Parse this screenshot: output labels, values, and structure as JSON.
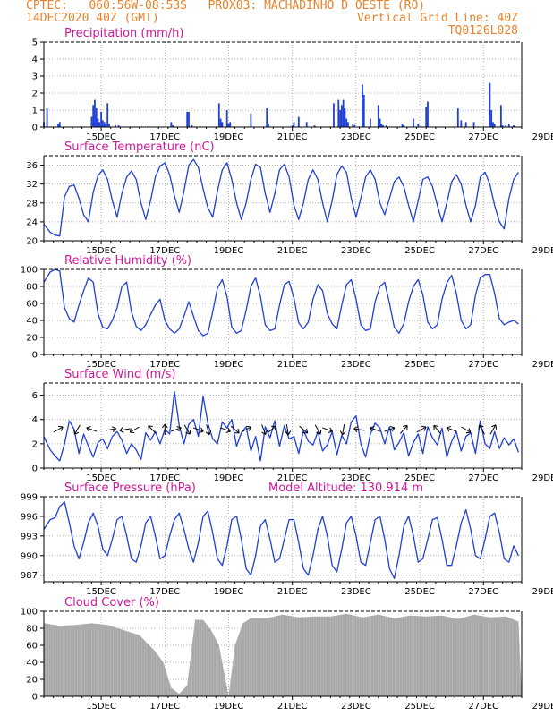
{
  "header": {
    "left1": "CPTEC:   060:56W-08:53S   PROX03: MACHADINHO D OESTE (RO)",
    "left2": "14DEC2020 40Z (GMT)",
    "right2": "Vertical Grid Line: 40Z",
    "right3": "TQ0126L028"
  },
  "colors": {
    "header": "#e8822a",
    "panel_title": "#d1169b",
    "series": "#1f3fd6",
    "cloud": "#a8a8a8"
  },
  "x_labels": [
    "15DEC",
    "17DEC",
    "19DEC",
    "21DEC",
    "23DEC",
    "25DEC",
    "27DEC",
    "29DEC"
  ],
  "chart_data": [
    {
      "type": "bar",
      "title": "Precipitation (mm/h)",
      "ylim": [
        0,
        5
      ],
      "yticks": [
        0,
        1,
        2,
        3,
        4,
        5
      ],
      "hours": [
        0,
        2,
        9,
        10,
        30,
        31,
        32,
        33,
        34,
        35,
        36,
        37,
        38,
        39,
        40,
        41,
        45,
        47,
        80,
        81,
        90,
        91,
        93,
        110,
        111,
        112,
        115,
        116,
        117,
        130,
        140,
        141,
        156,
        157,
        160,
        165,
        170,
        182,
        185,
        186,
        187,
        188,
        189,
        190,
        191,
        194,
        195,
        200,
        201,
        205,
        210,
        211,
        212,
        213,
        215,
        225,
        226,
        232,
        235,
        240,
        241,
        260,
        262,
        265,
        270,
        280,
        281,
        282,
        283,
        287,
        288,
        290,
        292,
        295
      ],
      "values": [
        0.3,
        1.1,
        0.2,
        0.3,
        0.6,
        1.3,
        1.6,
        1.1,
        0.5,
        0.3,
        0.9,
        0.4,
        0.3,
        0.2,
        1.4,
        0.2,
        0.1,
        0.1,
        0.3,
        0.1,
        0.9,
        0.9,
        0.1,
        1.4,
        0.5,
        0.3,
        1.0,
        0.2,
        0.3,
        0.8,
        1.1,
        0.2,
        0.1,
        0.3,
        0.6,
        0.3,
        0.1,
        1.4,
        1.6,
        1.0,
        1.3,
        1.6,
        1.1,
        0.5,
        0.3,
        0.2,
        0.1,
        2.5,
        1.9,
        0.5,
        1.3,
        0.5,
        0.2,
        0.1,
        0.1,
        0.2,
        0.1,
        0.5,
        0.2,
        1.2,
        1.5,
        1.1,
        0.4,
        0.3,
        0.3,
        2.6,
        1.0,
        0.3,
        0.2,
        1.3,
        0.1,
        0.1,
        0.2,
        0.1
      ]
    },
    {
      "type": "line",
      "title": "Surface Temperature (nC)",
      "ylim": [
        20,
        38
      ],
      "yticks": [
        20,
        24,
        28,
        32,
        36
      ],
      "x": [
        0,
        4,
        7,
        10,
        13,
        16,
        19,
        22,
        25,
        28,
        31,
        34,
        37,
        40,
        43,
        46,
        49,
        52,
        55,
        58,
        61,
        64,
        67,
        70,
        73,
        76,
        79,
        82,
        85,
        88,
        91,
        94,
        97,
        100,
        103,
        106,
        109,
        112,
        115,
        118,
        121,
        124,
        127,
        130,
        133,
        136,
        139,
        142,
        145,
        148,
        151,
        154,
        157,
        160,
        163,
        166,
        169,
        172,
        175,
        178,
        181,
        184,
        187,
        190,
        193,
        196,
        199,
        202,
        205,
        208,
        211,
        214,
        217,
        220,
        223,
        226,
        229,
        232,
        235,
        238,
        241,
        244,
        247,
        250,
        253,
        256,
        259,
        262,
        265,
        268,
        271,
        274,
        277,
        280,
        283,
        286,
        289,
        292,
        295,
        298
      ],
      "values": [
        23.5,
        21.8,
        21.2,
        21.0,
        29.3,
        31.5,
        31.8,
        29.0,
        25.5,
        24.0,
        30.3,
        33.8,
        35.0,
        33.0,
        28.5,
        25.0,
        30.0,
        33.5,
        34.8,
        33.0,
        28.0,
        24.5,
        28.5,
        33.5,
        35.8,
        36.5,
        34.0,
        29.5,
        26.0,
        30.5,
        36.0,
        37.2,
        35.5,
        31.0,
        27.0,
        25.0,
        30.5,
        35.0,
        36.5,
        33.0,
        28.0,
        24.5,
        28.0,
        33.0,
        36.2,
        35.5,
        30.0,
        26.0,
        30.0,
        35.0,
        36.2,
        33.5,
        27.5,
        24.5,
        28.0,
        33.0,
        35.0,
        33.0,
        28.0,
        24.0,
        28.5,
        34.0,
        35.8,
        34.5,
        29.0,
        25.0,
        29.0,
        33.5,
        35.0,
        33.0,
        28.0,
        25.5,
        29.0,
        32.5,
        33.5,
        31.5,
        27.5,
        24.0,
        28.5,
        33.0,
        33.5,
        31.5,
        27.5,
        24.0,
        28.0,
        32.5,
        34.0,
        32.0,
        27.5,
        24.0,
        27.5,
        33.5,
        34.5,
        32.0,
        27.5,
        24.0,
        22.5,
        29.0,
        33.0,
        34.5
      ]
    },
    {
      "type": "line",
      "title": "Relative Humidity (%)",
      "ylim": [
        0,
        100
      ],
      "yticks": [
        0,
        20,
        40,
        60,
        80,
        100
      ],
      "x": [
        0,
        4,
        7,
        10,
        13,
        16,
        19,
        22,
        25,
        28,
        31,
        34,
        37,
        40,
        43,
        46,
        49,
        52,
        55,
        58,
        61,
        64,
        67,
        70,
        73,
        76,
        79,
        82,
        85,
        88,
        91,
        94,
        97,
        100,
        103,
        106,
        109,
        112,
        115,
        118,
        121,
        124,
        127,
        130,
        133,
        136,
        139,
        142,
        145,
        148,
        151,
        154,
        157,
        160,
        163,
        166,
        169,
        172,
        175,
        178,
        181,
        184,
        187,
        190,
        193,
        196,
        199,
        202,
        205,
        208,
        211,
        214,
        217,
        220,
        223,
        226,
        229,
        232,
        235,
        238,
        241,
        244,
        247,
        250,
        253,
        256,
        259,
        262,
        265,
        268,
        271,
        274,
        277,
        280,
        283,
        286,
        289,
        292,
        295,
        298
      ],
      "values": [
        85,
        97,
        100,
        98,
        55,
        42,
        38,
        58,
        75,
        90,
        85,
        48,
        32,
        30,
        40,
        55,
        80,
        85,
        50,
        33,
        28,
        35,
        47,
        58,
        65,
        40,
        30,
        25,
        30,
        45,
        62,
        45,
        28,
        22,
        25,
        50,
        78,
        88,
        68,
        32,
        25,
        28,
        52,
        80,
        90,
        68,
        35,
        28,
        30,
        58,
        82,
        86,
        66,
        37,
        30,
        38,
        65,
        82,
        75,
        48,
        36,
        30,
        58,
        82,
        88,
        65,
        35,
        28,
        30,
        62,
        80,
        85,
        60,
        32,
        25,
        36,
        62,
        80,
        88,
        70,
        38,
        30,
        35,
        65,
        84,
        93,
        72,
        40,
        30,
        35,
        70,
        90,
        94,
        94,
        72,
        42,
        35,
        38,
        40,
        36
      ]
    },
    {
      "type": "line",
      "title": "Surface Wind (m/s)",
      "ylim": [
        0,
        7
      ],
      "yticks": [
        0,
        2,
        4,
        6
      ],
      "x": [
        0,
        4,
        7,
        10,
        13,
        16,
        19,
        22,
        25,
        28,
        31,
        34,
        37,
        40,
        43,
        46,
        49,
        52,
        55,
        58,
        61,
        64,
        67,
        70,
        73,
        76,
        79,
        82,
        85,
        88,
        91,
        94,
        97,
        100,
        103,
        106,
        109,
        112,
        115,
        118,
        121,
        124,
        127,
        130,
        133,
        136,
        139,
        142,
        145,
        148,
        151,
        154,
        157,
        160,
        163,
        166,
        169,
        172,
        175,
        178,
        181,
        184,
        187,
        190,
        193,
        196,
        199,
        202,
        205,
        208,
        211,
        214,
        217,
        220,
        223,
        226,
        229,
        232,
        235,
        238,
        241,
        244,
        247,
        250,
        253,
        256,
        259,
        262,
        265,
        268,
        271,
        274,
        277,
        280,
        283,
        286,
        289,
        292,
        295,
        298
      ],
      "values": [
        2.6,
        1.5,
        1.0,
        0.6,
        2.0,
        3.9,
        3.2,
        1.2,
        2.8,
        1.8,
        0.9,
        2.1,
        2.4,
        1.6,
        2.6,
        3.0,
        2.3,
        1.2,
        2.0,
        1.5,
        0.7,
        2.9,
        2.3,
        3.0,
        2.0,
        3.2,
        2.8,
        6.3,
        3.5,
        2.0,
        3.6,
        4.0,
        2.6,
        5.9,
        3.7,
        2.4,
        2.0,
        3.8,
        3.3,
        4.0,
        1.8,
        2.9,
        3.4,
        1.4,
        2.6,
        0.6,
        3.4,
        2.5,
        3.9,
        1.8,
        3.5,
        2.4,
        2.6,
        1.2,
        3.1,
        2.2,
        1.9,
        3.0,
        1.4,
        1.9,
        3.0,
        1.1,
        2.7,
        2.0,
        3.8,
        4.3,
        2.0,
        0.9,
        2.8,
        3.7,
        3.3,
        2.0,
        3.4,
        1.5,
        2.1,
        2.9,
        1.0,
        2.1,
        2.8,
        1.2,
        3.4,
        2.5,
        1.9,
        3.3,
        0.9,
        2.2,
        3.0,
        1.4,
        2.6,
        2.9,
        1.2,
        3.9,
        2.0,
        1.6,
        3.0,
        1.6,
        2.5,
        1.9,
        2.4,
        1.3
      ],
      "arrows": [
        {
          "x": 9,
          "deg": -30
        },
        {
          "x": 21,
          "deg": 120
        },
        {
          "x": 30,
          "deg": 200
        },
        {
          "x": 42,
          "deg": -10
        },
        {
          "x": 51,
          "deg": 170
        },
        {
          "x": 57,
          "deg": 150
        },
        {
          "x": 68,
          "deg": 225
        },
        {
          "x": 76,
          "deg": -90
        },
        {
          "x": 83,
          "deg": -20
        },
        {
          "x": 90,
          "deg": 60
        },
        {
          "x": 97,
          "deg": 20
        },
        {
          "x": 103,
          "deg": 75
        },
        {
          "x": 114,
          "deg": 20
        },
        {
          "x": 120,
          "deg": 40
        },
        {
          "x": 127,
          "deg": -30
        },
        {
          "x": 138,
          "deg": 70
        },
        {
          "x": 143,
          "deg": -40
        },
        {
          "x": 153,
          "deg": 80
        },
        {
          "x": 163,
          "deg": 40
        },
        {
          "x": 172,
          "deg": 60
        },
        {
          "x": 178,
          "deg": 20
        },
        {
          "x": 188,
          "deg": 100
        },
        {
          "x": 198,
          "deg": 190
        },
        {
          "x": 208,
          "deg": 200
        },
        {
          "x": 217,
          "deg": -20
        },
        {
          "x": 226,
          "deg": -50
        },
        {
          "x": 237,
          "deg": -30
        },
        {
          "x": 247,
          "deg": 230
        },
        {
          "x": 256,
          "deg": 200
        },
        {
          "x": 265,
          "deg": 30
        },
        {
          "x": 275,
          "deg": -120
        },
        {
          "x": 282,
          "deg": -60
        }
      ]
    },
    {
      "type": "line",
      "title": "Surface Pressure (hPa)",
      "annotation": "Model Altitude: 130.914 m",
      "ylim": [
        986,
        999
      ],
      "yticks": [
        987,
        990,
        993,
        996,
        999
      ],
      "x": [
        0,
        4,
        7,
        10,
        13,
        16,
        19,
        22,
        25,
        28,
        31,
        34,
        37,
        40,
        43,
        46,
        49,
        52,
        55,
        58,
        61,
        64,
        67,
        70,
        73,
        76,
        79,
        82,
        85,
        88,
        91,
        94,
        97,
        100,
        103,
        106,
        109,
        112,
        115,
        118,
        121,
        124,
        127,
        130,
        133,
        136,
        139,
        142,
        145,
        148,
        151,
        154,
        157,
        160,
        163,
        166,
        169,
        172,
        175,
        178,
        181,
        184,
        187,
        190,
        193,
        196,
        199,
        202,
        205,
        208,
        211,
        214,
        217,
        220,
        223,
        226,
        229,
        232,
        235,
        238,
        241,
        244,
        247,
        250,
        253,
        256,
        259,
        262,
        265,
        268,
        271,
        274,
        277,
        280,
        283,
        286,
        289,
        292,
        295,
        298
      ],
      "values": [
        994,
        995.5,
        995.8,
        997.5,
        998.2,
        995,
        991.5,
        989.5,
        992,
        995,
        996.5,
        994.5,
        991,
        990,
        992.5,
        995.5,
        996,
        993,
        989.5,
        989,
        991.5,
        995,
        996,
        993,
        989.5,
        990,
        993,
        995.5,
        996.5,
        994,
        991,
        989,
        992,
        996,
        996.8,
        993.5,
        989.5,
        988.5,
        991.5,
        995.5,
        996,
        992.5,
        988,
        987,
        990,
        994.5,
        995.5,
        992.5,
        989,
        989.5,
        992.5,
        995.5,
        995.5,
        992,
        988,
        987,
        990,
        994,
        996,
        993,
        988.5,
        987.5,
        991,
        995,
        996,
        993,
        989,
        988.5,
        992,
        995.5,
        996,
        992.5,
        988,
        986.5,
        990,
        994.5,
        996,
        993,
        989,
        989.5,
        992.5,
        995.5,
        995.8,
        992.5,
        988.5,
        988.5,
        991.5,
        995,
        997,
        994,
        990,
        989.5,
        992.5,
        996,
        996.5,
        993.5,
        989.5,
        989,
        991.5,
        990
      ]
    },
    {
      "type": "bar",
      "title": "Cloud Cover (%)",
      "ylim": [
        0,
        100
      ],
      "yticks": [
        0,
        20,
        40,
        60,
        80,
        100
      ],
      "x": [
        0,
        10,
        20,
        30,
        40,
        50,
        60,
        70,
        75,
        80,
        85,
        90,
        95,
        100,
        105,
        110,
        113,
        116,
        120,
        125,
        130,
        140,
        150,
        160,
        170,
        180,
        190,
        200,
        210,
        220,
        230,
        240,
        250,
        260,
        270,
        280,
        290,
        298
      ],
      "values": [
        86,
        85,
        84,
        88,
        84,
        80,
        72,
        55,
        40,
        12,
        3,
        15,
        90,
        92,
        78,
        62,
        30,
        3,
        60,
        88,
        92,
        94,
        96,
        95,
        94,
        96,
        97,
        95,
        96,
        94,
        95,
        96,
        95,
        93,
        96,
        95,
        94,
        90
      ]
    }
  ]
}
